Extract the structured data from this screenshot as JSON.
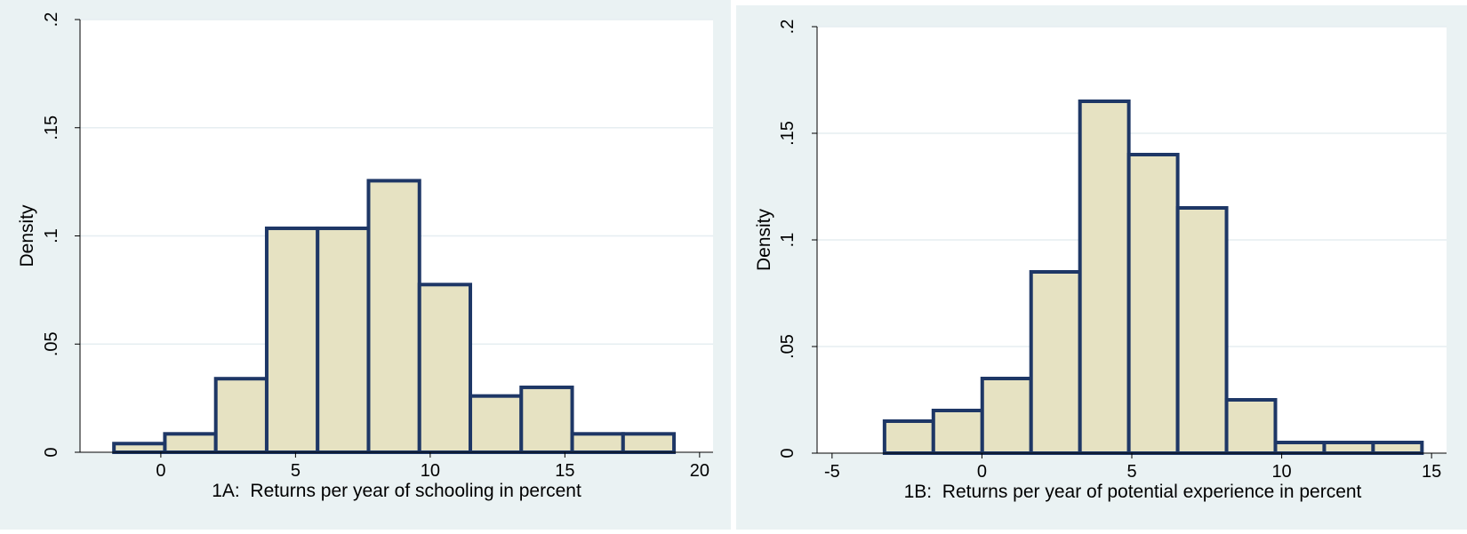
{
  "chart_data": [
    {
      "type": "bar",
      "subtype": "histogram",
      "xlabel": "1A:  Returns per year of schooling in percent",
      "ylabel": "Density",
      "xlim": [
        -3,
        20.5
      ],
      "ylim": [
        0,
        0.2
      ],
      "xticks": [
        0,
        5,
        10,
        15,
        20
      ],
      "xtick_labels": [
        "0",
        "5",
        "10",
        "15",
        "20"
      ],
      "yticks": [
        0,
        0.05,
        0.1,
        0.15,
        0.2
      ],
      "ytick_labels": [
        "0",
        ".05",
        ".1",
        ".15",
        ".2"
      ],
      "grid": true,
      "bins": [
        {
          "x0": -1.74,
          "x1": 0.15,
          "value": 0.004
        },
        {
          "x0": 0.15,
          "x1": 2.04,
          "value": 0.0085
        },
        {
          "x0": 2.04,
          "x1": 3.93,
          "value": 0.034
        },
        {
          "x0": 3.93,
          "x1": 5.82,
          "value": 0.1035
        },
        {
          "x0": 5.82,
          "x1": 7.71,
          "value": 0.1035
        },
        {
          "x0": 7.71,
          "x1": 9.6,
          "value": 0.1255
        },
        {
          "x0": 9.6,
          "x1": 11.49,
          "value": 0.0775
        },
        {
          "x0": 11.49,
          "x1": 13.38,
          "value": 0.026
        },
        {
          "x0": 13.38,
          "x1": 15.27,
          "value": 0.03
        },
        {
          "x0": 15.27,
          "x1": 17.16,
          "value": 0.0085
        },
        {
          "x0": 17.16,
          "x1": 19.05,
          "value": 0.0085
        }
      ]
    },
    {
      "type": "bar",
      "subtype": "histogram",
      "xlabel": "1B:  Returns per year of potential experience in percent",
      "ylabel": "Density",
      "xlim": [
        -5.5,
        15.5
      ],
      "ylim": [
        0,
        0.2
      ],
      "xticks": [
        -5,
        0,
        5,
        10,
        15
      ],
      "xtick_labels": [
        "-5",
        "0",
        "5",
        "10",
        "15"
      ],
      "yticks": [
        0,
        0.05,
        0.1,
        0.15,
        0.2
      ],
      "ytick_labels": [
        "0",
        ".05",
        ".1",
        ".15",
        ".2"
      ],
      "grid": true,
      "bins": [
        {
          "x0": -3.25,
          "x1": -1.62,
          "value": 0.015
        },
        {
          "x0": -1.62,
          "x1": 0.01,
          "value": 0.02
        },
        {
          "x0": 0.01,
          "x1": 1.64,
          "value": 0.035
        },
        {
          "x0": 1.64,
          "x1": 3.27,
          "value": 0.085
        },
        {
          "x0": 3.27,
          "x1": 4.9,
          "value": 0.165
        },
        {
          "x0": 4.9,
          "x1": 6.53,
          "value": 0.14
        },
        {
          "x0": 6.53,
          "x1": 8.16,
          "value": 0.115
        },
        {
          "x0": 8.16,
          "x1": 9.79,
          "value": 0.025
        },
        {
          "x0": 9.79,
          "x1": 11.42,
          "value": 0.005
        },
        {
          "x0": 11.42,
          "x1": 13.05,
          "value": 0.005
        },
        {
          "x0": 13.05,
          "x1": 14.68,
          "value": 0.005
        }
      ]
    }
  ],
  "colors": {
    "outer_background": "#eaf2f3",
    "plot_background": "#ffffff",
    "bar_fill": "#e6e2c2",
    "bar_edge": "#1e3766",
    "grid": "#e6eef1",
    "axis": "#000000"
  }
}
